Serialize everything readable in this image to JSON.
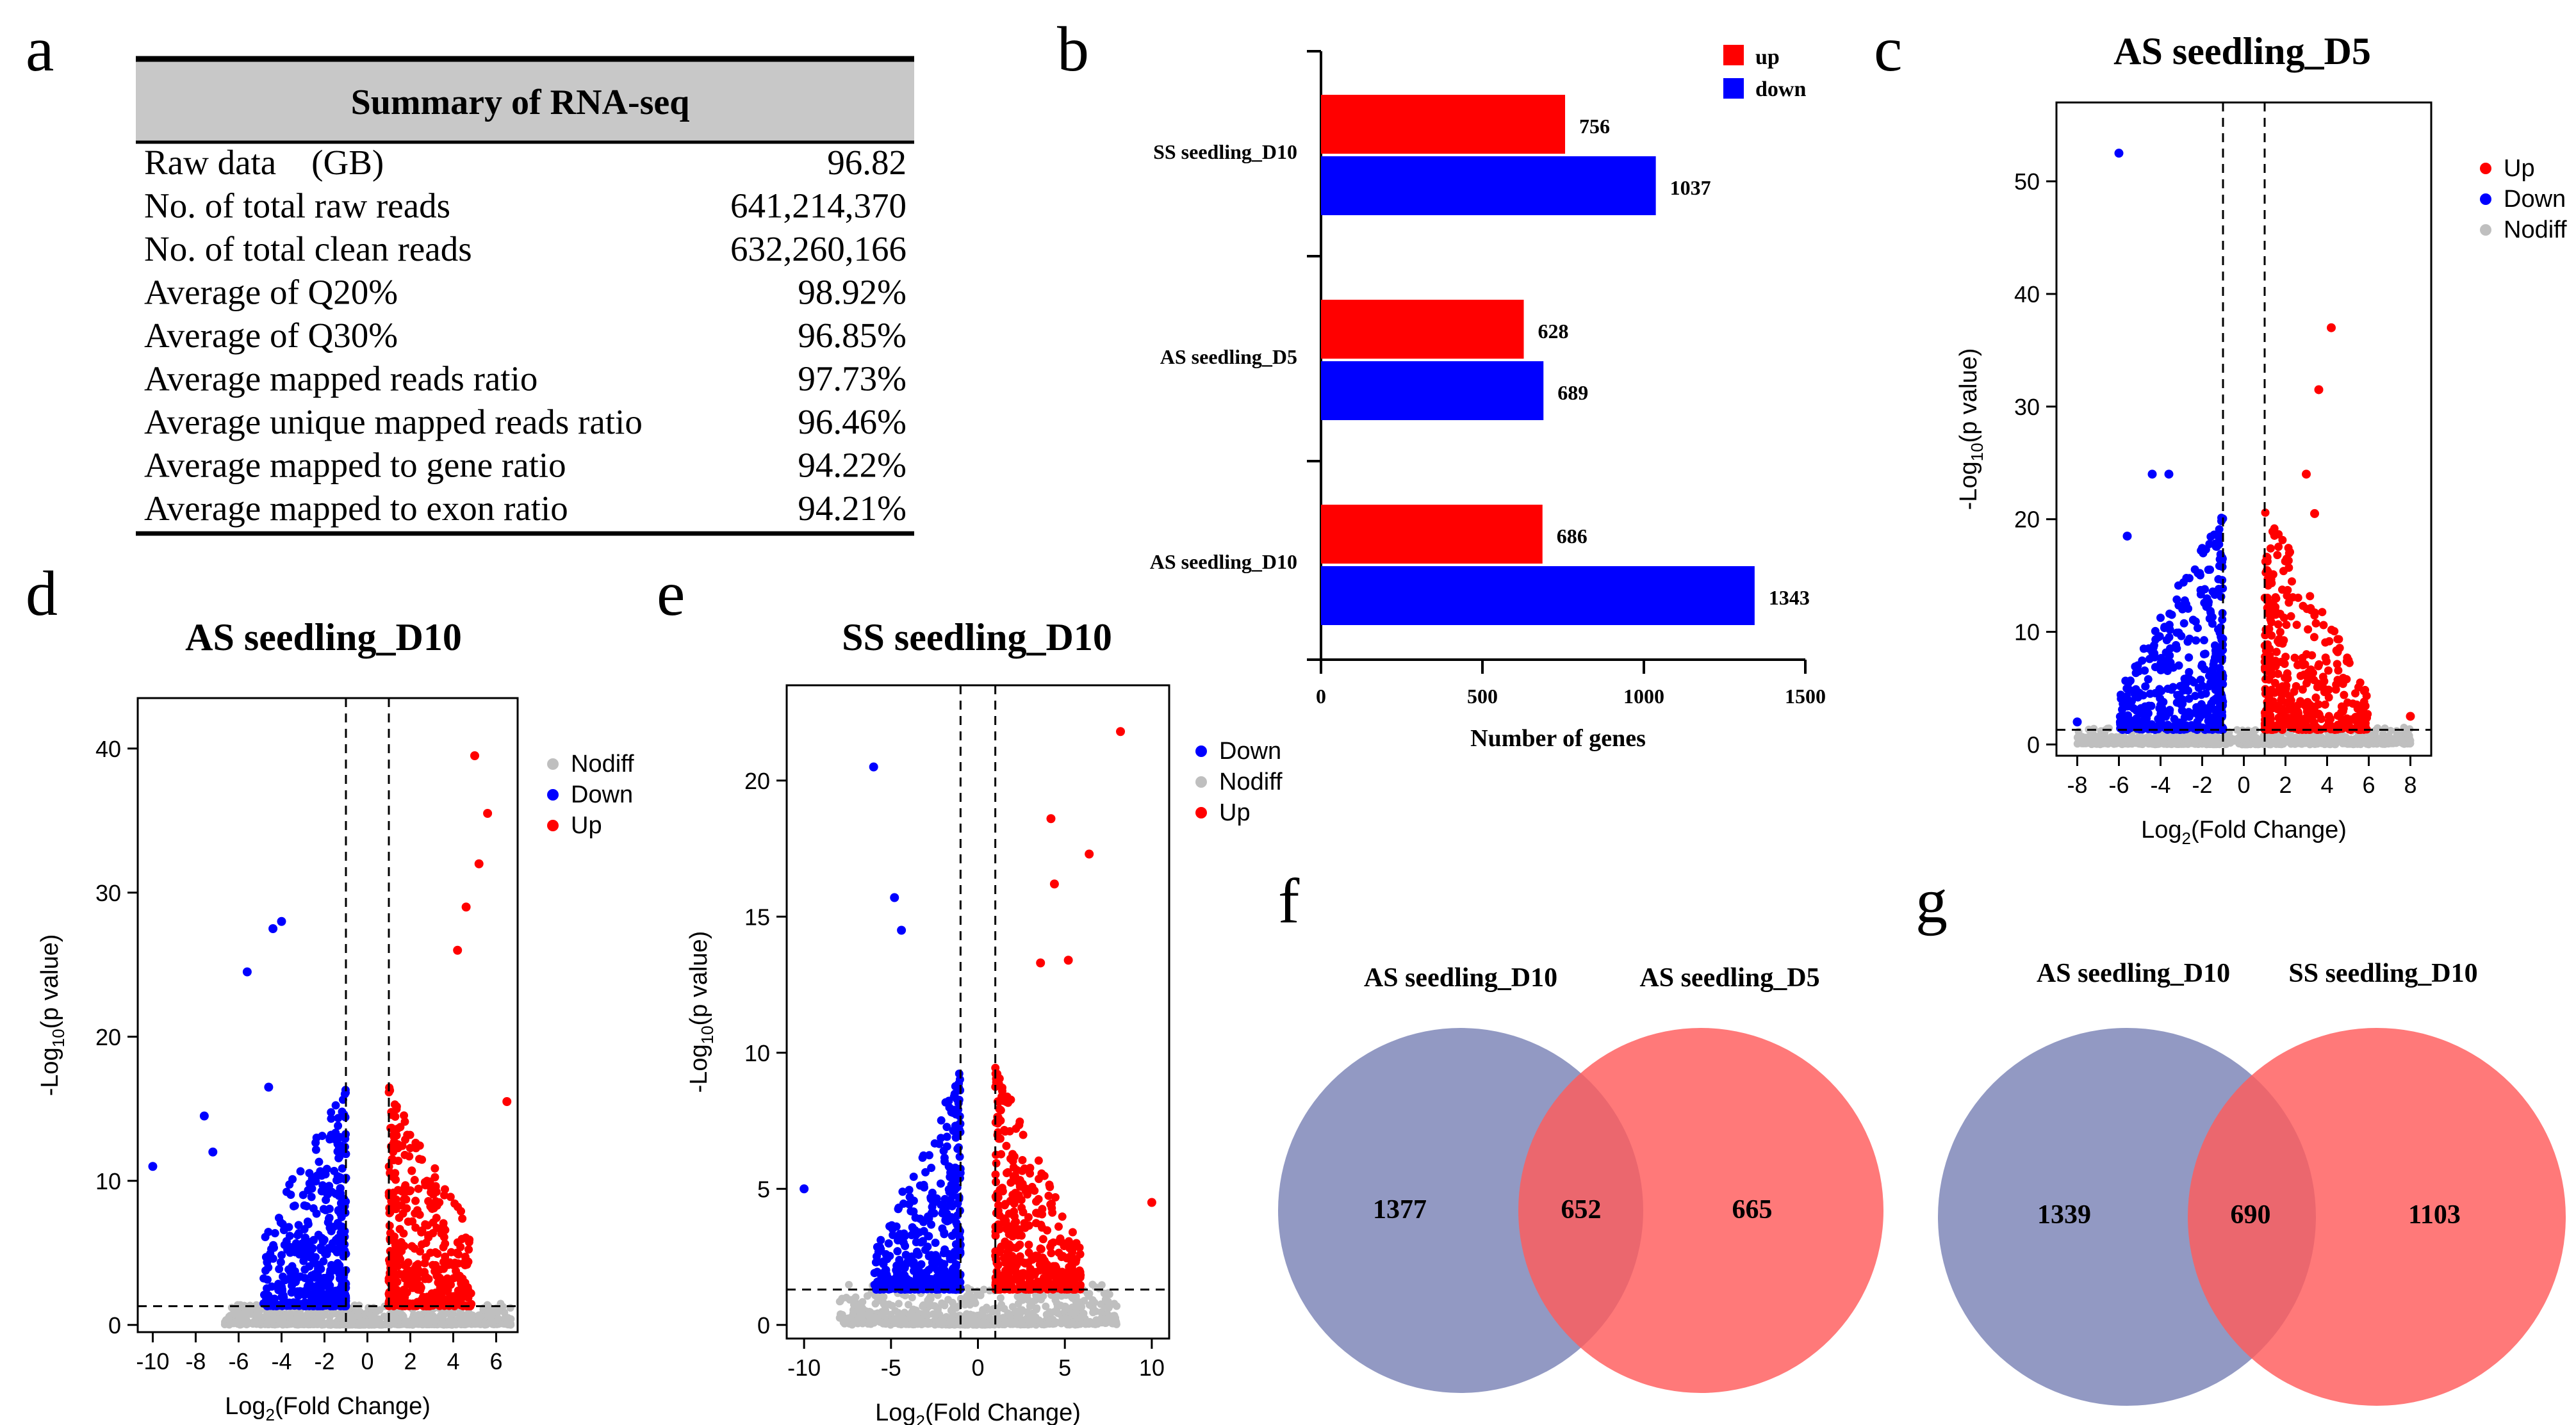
{
  "panels": {
    "a": "a",
    "b": "b",
    "c": "c",
    "d": "d",
    "e": "e",
    "f": "f",
    "g": "g"
  },
  "summary_table": {
    "title": "Summary of RNA-seq",
    "rows": [
      {
        "label": "Raw data　(GB)",
        "value": "96.82"
      },
      {
        "label": "No. of total raw reads",
        "value": "641,214,370"
      },
      {
        "label": "No. of total clean reads",
        "value": "632,260,166"
      },
      {
        "label": "Average of  Q20%",
        "value": "98.92%"
      },
      {
        "label": "Average of  Q30%",
        "value": "96.85%"
      },
      {
        "label": "Average mapped reads ratio",
        "value": "97.73%"
      },
      {
        "label": "Average unique mapped reads ratio",
        "value": "96.46%"
      },
      {
        "label": "Average mapped to gene ratio",
        "value": "94.22%"
      },
      {
        "label": "Average mapped to exon ratio",
        "value": "94.21%"
      }
    ]
  },
  "colors": {
    "up": "#ff0000",
    "down": "#0000ff",
    "nodiff": "#bfbfbf",
    "venn_left": "#7f87b8",
    "venn_right": "#ff6b6b",
    "header_bg": "#c8c8c8"
  },
  "chart_data": [
    {
      "id": "bar",
      "type": "bar",
      "orientation": "horizontal",
      "categories": [
        "SS seedling_D10",
        "AS seedling_D5",
        "AS seedling_D10"
      ],
      "series": [
        {
          "name": "up",
          "values": [
            756,
            628,
            686
          ]
        },
        {
          "name": "down",
          "values": [
            1037,
            689,
            1343
          ]
        }
      ],
      "xlabel": "Number of genes",
      "xlim": [
        0,
        1500
      ],
      "xticks": [
        0,
        500,
        1000,
        1500
      ],
      "legend": "top-right"
    },
    {
      "id": "volcano_c",
      "type": "scatter",
      "title": "AS seedling_D5",
      "xlabel_main": "Log",
      "xlabel_sub": "2",
      "xlabel_tail": "(Fold Change)",
      "ylabel_main": "-Log",
      "ylabel_sub": "10",
      "ylabel_tail": "(p value)",
      "xlim": [
        -9,
        9
      ],
      "ylim": [
        -1,
        57
      ],
      "xticks": [
        -8,
        -6,
        -4,
        -2,
        0,
        2,
        4,
        6,
        8
      ],
      "yticks": [
        0,
        10,
        20,
        30,
        40,
        50
      ],
      "fc_cut": 1,
      "p_line": 1.3,
      "legend": [
        "Up",
        "Down",
        "Nodiff"
      ],
      "legend_keys": [
        "up",
        "down",
        "nodiff"
      ],
      "highlights": [
        {
          "x": -6.0,
          "y": 52.5,
          "g": "down"
        },
        {
          "x": 4.2,
          "y": 37.0,
          "g": "up"
        },
        {
          "x": 3.6,
          "y": 31.5,
          "g": "up"
        },
        {
          "x": 3.0,
          "y": 24.0,
          "g": "up"
        },
        {
          "x": 3.4,
          "y": 20.5,
          "g": "up"
        },
        {
          "x": -4.4,
          "y": 24.0,
          "g": "down"
        },
        {
          "x": -3.6,
          "y": 24.0,
          "g": "down"
        },
        {
          "x": -5.6,
          "y": 18.5,
          "g": "down"
        },
        {
          "x": -8.0,
          "y": 2.0,
          "g": "down"
        },
        {
          "x": 8.0,
          "y": 2.5,
          "g": "up"
        }
      ],
      "seed": 11
    },
    {
      "id": "volcano_d",
      "type": "scatter",
      "title": "AS seedling_D10",
      "xlabel_main": "Log",
      "xlabel_sub": "2",
      "xlabel_tail": "(Fold Change)",
      "ylabel_main": "-Log",
      "ylabel_sub": "10",
      "ylabel_tail": "(p value)",
      "xlim": [
        -10.7,
        7.0
      ],
      "ylim": [
        -0.5,
        43.5
      ],
      "xticks": [
        -10,
        -8,
        -6,
        -4,
        -2,
        0,
        2,
        4,
        6
      ],
      "yticks": [
        0,
        10,
        20,
        30,
        40
      ],
      "fc_cut": 1,
      "p_line": 1.3,
      "legend": [
        "Nodiff",
        "Down",
        "Up"
      ],
      "legend_keys": [
        "nodiff",
        "down",
        "up"
      ],
      "highlights": [
        {
          "x": 5.0,
          "y": 39.5,
          "g": "up"
        },
        {
          "x": 5.6,
          "y": 35.5,
          "g": "up"
        },
        {
          "x": 5.2,
          "y": 32.0,
          "g": "up"
        },
        {
          "x": 4.6,
          "y": 29.0,
          "g": "up"
        },
        {
          "x": 4.2,
          "y": 26.0,
          "g": "up"
        },
        {
          "x": 6.5,
          "y": 15.5,
          "g": "up"
        },
        {
          "x": -4.0,
          "y": 28.0,
          "g": "down"
        },
        {
          "x": -4.4,
          "y": 27.5,
          "g": "down"
        },
        {
          "x": -5.6,
          "y": 24.5,
          "g": "down"
        },
        {
          "x": -7.6,
          "y": 14.5,
          "g": "down"
        },
        {
          "x": -10.0,
          "y": 11.0,
          "g": "down"
        },
        {
          "x": -7.2,
          "y": 12.0,
          "g": "down"
        },
        {
          "x": -4.6,
          "y": 16.5,
          "g": "down"
        }
      ],
      "seed": 23
    },
    {
      "id": "volcano_e",
      "type": "scatter",
      "title": "SS seedling_D10",
      "xlabel_main": "Log",
      "xlabel_sub": "2",
      "xlabel_tail": "(Fold Change)",
      "ylabel_main": "-Log",
      "ylabel_sub": "10",
      "ylabel_tail": "(p value)",
      "xlim": [
        -11,
        11
      ],
      "ylim": [
        -0.5,
        23.5
      ],
      "xticks": [
        -10,
        -5,
        0,
        5,
        10
      ],
      "yticks": [
        0,
        5,
        10,
        15,
        20
      ],
      "fc_cut": 1,
      "p_line": 1.3,
      "legend": [
        "Down",
        "Nodiff",
        "Up"
      ],
      "legend_keys": [
        "down",
        "nodiff",
        "up"
      ],
      "highlights": [
        {
          "x": -6.0,
          "y": 20.5,
          "g": "down"
        },
        {
          "x": -4.8,
          "y": 15.7,
          "g": "down"
        },
        {
          "x": -4.4,
          "y": 14.5,
          "g": "down"
        },
        {
          "x": 8.2,
          "y": 21.8,
          "g": "up"
        },
        {
          "x": 4.2,
          "y": 18.6,
          "g": "up"
        },
        {
          "x": 6.4,
          "y": 17.3,
          "g": "up"
        },
        {
          "x": 4.4,
          "y": 16.2,
          "g": "up"
        },
        {
          "x": 5.2,
          "y": 13.4,
          "g": "up"
        },
        {
          "x": 3.6,
          "y": 13.3,
          "g": "up"
        },
        {
          "x": -10.0,
          "y": 5.0,
          "g": "down"
        },
        {
          "x": 10.0,
          "y": 4.5,
          "g": "up"
        }
      ],
      "seed": 37
    },
    {
      "id": "venn_f",
      "type": "venn",
      "sets": [
        "AS seedling_D10",
        "AS seedling_D5"
      ],
      "only_left": 1377,
      "intersection": 652,
      "only_right": 665
    },
    {
      "id": "venn_g",
      "type": "venn",
      "sets": [
        "AS seedling_D10",
        "SS seedling_D10"
      ],
      "only_left": 1339,
      "intersection": 690,
      "only_right": 1103
    }
  ]
}
